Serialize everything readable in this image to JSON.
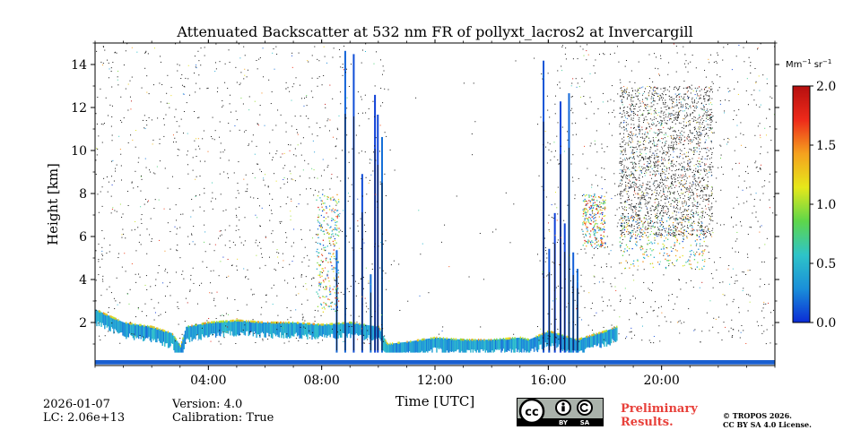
{
  "chart_data": {
    "type": "heatmap",
    "title": "Attenuated Backscatter at 532 nm FR of pollyxt_lacros2 at Invercargill",
    "xlabel": "Time [UTC]",
    "ylabel": "Height [km]",
    "xlim_hours": [
      0,
      24
    ],
    "ylim_km": [
      0,
      15
    ],
    "x_ticks": [
      {
        "value": 4,
        "label": "04:00"
      },
      {
        "value": 8,
        "label": "08:00"
      },
      {
        "value": 12,
        "label": "12:00"
      },
      {
        "value": 16,
        "label": "16:00"
      },
      {
        "value": 20,
        "label": "20:00"
      }
    ],
    "y_ticks": [
      {
        "value": 2,
        "label": "2"
      },
      {
        "value": 4,
        "label": "4"
      },
      {
        "value": 6,
        "label": "6"
      },
      {
        "value": 8,
        "label": "8"
      },
      {
        "value": 10,
        "label": "10"
      },
      {
        "value": 12,
        "label": "12"
      },
      {
        "value": 14,
        "label": "14"
      }
    ],
    "colorbar": {
      "unit_base_1": "Mm",
      "unit_exp_1": "−1",
      "unit_base_2": "sr",
      "unit_exp_2": "−1",
      "range": [
        0.0,
        2.0
      ],
      "ticks": [
        {
          "value": 0.0,
          "label": "0.0"
        },
        {
          "value": 0.5,
          "label": "0.5"
        },
        {
          "value": 1.0,
          "label": "1.0"
        },
        {
          "value": 1.5,
          "label": "1.5"
        },
        {
          "value": 2.0,
          "label": "2.0"
        }
      ],
      "colormap": [
        "#0b2bd6",
        "#1a8fd9",
        "#2ec4c8",
        "#5ed64a",
        "#e6e81a",
        "#f5a11e",
        "#ee2a1a",
        "#b50f0f"
      ]
    },
    "boundary_layer_top_km": [
      [
        0.0,
        2.6
      ],
      [
        1.0,
        2.0
      ],
      [
        2.0,
        1.8
      ],
      [
        2.7,
        1.5
      ],
      [
        3.0,
        0.9
      ],
      [
        3.2,
        1.8
      ],
      [
        4.0,
        2.0
      ],
      [
        5.0,
        2.1
      ],
      [
        6.0,
        2.0
      ],
      [
        7.0,
        2.0
      ],
      [
        8.0,
        1.9
      ],
      [
        9.0,
        2.0
      ],
      [
        10.0,
        1.8
      ],
      [
        10.3,
        1.0
      ],
      [
        11.0,
        1.1
      ],
      [
        12.0,
        1.3
      ],
      [
        13.0,
        1.2
      ],
      [
        14.0,
        1.2
      ],
      [
        15.0,
        1.3
      ],
      [
        15.3,
        1.2
      ],
      [
        16.0,
        1.6
      ],
      [
        17.0,
        1.2
      ],
      [
        18.0,
        1.6
      ],
      [
        18.4,
        1.8
      ]
    ],
    "precipitation_streaks_hours": [
      8.5,
      8.8,
      9.1,
      9.4,
      9.7,
      9.85,
      9.95,
      10.1,
      15.8,
      16.0,
      16.2,
      16.4,
      16.55,
      16.7,
      16.85,
      17.0
    ],
    "aerosol_layers": [
      {
        "start_hour": 17.2,
        "end_hour": 18.0,
        "bottom_km": 5.5,
        "top_km": 8.0,
        "peak_value": 1.9
      },
      {
        "start_hour": 18.5,
        "end_hour": 21.5,
        "bottom_km": 4.5,
        "top_km": 7.0,
        "peak_value": 1.6
      },
      {
        "start_hour": 7.8,
        "end_hour": 8.6,
        "bottom_km": 2.5,
        "top_km": 8.0,
        "peak_value": 1.8
      }
    ],
    "high_noise_region": {
      "start_hour": 18.5,
      "end_hour": 21.8,
      "bottom_km": 6.0,
      "top_km": 13.0
    }
  },
  "footer": {
    "date": "2026-01-07",
    "lc": "LC: 2.06e+13",
    "version": "Version: 4.0",
    "calibration": "Calibration: True",
    "preliminary_line1": "Preliminary",
    "preliminary_line2": "Results.",
    "copyright_line1": "© TROPOS 2026.",
    "copyright_line2": "CC BY SA 4.0 License.",
    "license_badge_cc": "cc",
    "license_badge_by": "BY",
    "license_badge_sa": "SA",
    "license_badge_color": "#aab2ab"
  }
}
